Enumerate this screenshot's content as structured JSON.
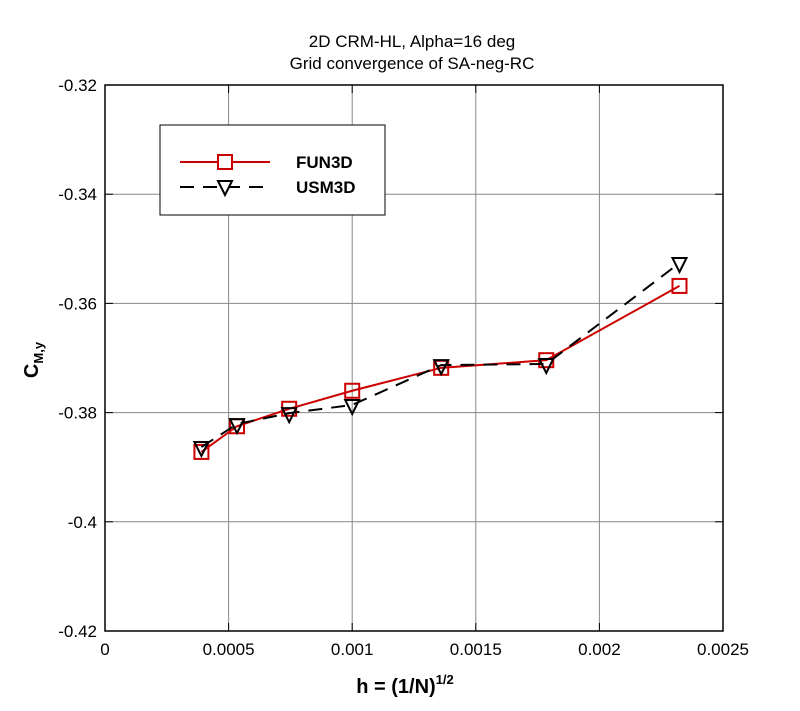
{
  "chart_data": {
    "type": "line",
    "title": "2D CRM-HL, Alpha=16 deg",
    "subtitle": "Grid convergence of SA-neg-RC",
    "xlabel": "h = (1/N)",
    "xlabel_sup": "1/2",
    "ylabel": "C",
    "ylabel_sub": "M,y",
    "xlim": [
      0,
      0.0025
    ],
    "ylim": [
      -0.42,
      -0.32
    ],
    "xticks": [
      "0",
      "0.0005",
      "0.001",
      "0.0015",
      "0.002",
      "0.0025"
    ],
    "xtick_values": [
      0,
      0.0005,
      0.001,
      0.0015,
      0.002,
      0.0025
    ],
    "yticks": [
      "-0.32",
      "-0.34",
      "-0.36",
      "-0.38",
      "-0.4",
      "-0.42"
    ],
    "ytick_values": [
      -0.32,
      -0.34,
      -0.36,
      -0.38,
      -0.4,
      -0.42
    ],
    "grid": true,
    "legend_position": "top-left",
    "series": [
      {
        "name": "FUN3D",
        "color": "#cc0000",
        "line": "solid",
        "marker": "square",
        "x": [
          0.00039,
          0.000534,
          0.000745,
          0.001,
          0.00136,
          0.001785,
          0.002324
        ],
        "y": [
          -0.3872,
          -0.3825,
          -0.3793,
          -0.376,
          -0.3718,
          -0.3704,
          -0.3568
        ]
      },
      {
        "name": "USM3D",
        "color": "#000000",
        "line": "dashed",
        "marker": "triangle-down",
        "x": [
          0.00039,
          0.000534,
          0.000745,
          0.001,
          0.00136,
          0.001785,
          0.002324
        ],
        "y": [
          -0.3863,
          -0.3821,
          -0.3801,
          -0.3786,
          -0.3713,
          -0.3711,
          -0.3526
        ]
      }
    ]
  }
}
